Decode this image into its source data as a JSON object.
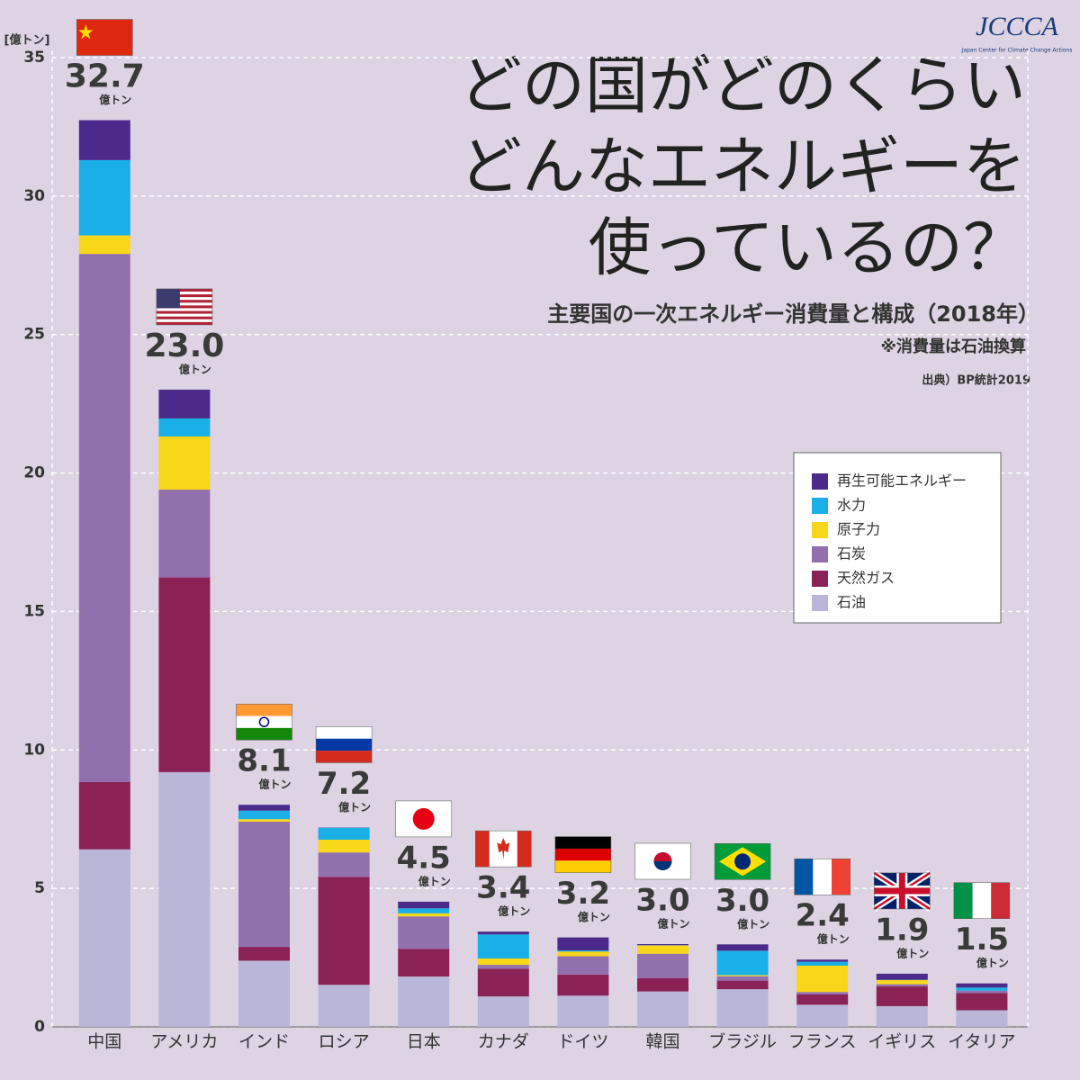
{
  "chart_data": {
    "type": "stacked-bar",
    "title_lines": [
      "どの国がどのくらい",
      "どんなエネルギーを",
      "使っているの？"
    ],
    "subtitle": "主要国の一次エネルギー消費量と構成（2018年）",
    "note": "※消費量は石油換算",
    "source": "出典）BP統計2019",
    "logo": "JCCCA",
    "logo_caption": "Japan Center for Climate Change Actions",
    "y_label": "[億トン]",
    "categories": [
      "中国",
      "アメリカ",
      "インド",
      "ロシア",
      "日本",
      "カナダ",
      "ドイツ",
      "韓国",
      "ブラジル",
      "フランス",
      "イギリス",
      "イタリア"
    ],
    "series": [
      {
        "name": "石油",
        "color": "#b9b6d7",
        "values": [
          6.41,
          9.2,
          2.39,
          1.52,
          1.82,
          1.1,
          1.13,
          1.28,
          1.36,
          0.8,
          0.75,
          0.6
        ]
      },
      {
        "name": "天然ガス",
        "color": "#8a2256",
        "values": [
          2.43,
          7.03,
          0.5,
          3.9,
          1.0,
          1.0,
          0.76,
          0.48,
          0.31,
          0.37,
          0.71,
          0.62
        ]
      },
      {
        "name": "石炭",
        "color": "#9270ae",
        "values": [
          19.07,
          3.17,
          4.52,
          0.88,
          1.17,
          0.14,
          0.66,
          0.88,
          0.16,
          0.09,
          0.08,
          0.09
        ]
      },
      {
        "name": "原子力",
        "color": "#f8d61a",
        "values": [
          0.67,
          1.92,
          0.09,
          0.46,
          0.11,
          0.23,
          0.17,
          0.3,
          0.04,
          0.95,
          0.15,
          0
        ]
      },
      {
        "name": "水力",
        "color": "#1aafe6",
        "values": [
          2.72,
          0.65,
          0.31,
          0.43,
          0.18,
          0.87,
          0.04,
          0.01,
          0.88,
          0.14,
          0.01,
          0.11
        ]
      },
      {
        "name": "再生可能エネルギー",
        "color": "#4c2a8b",
        "values": [
          1.44,
          1.04,
          0.21,
          0.01,
          0.24,
          0.1,
          0.47,
          0.04,
          0.23,
          0.08,
          0.22,
          0.15
        ]
      }
    ],
    "totals": [
      32.7,
      23,
      8.1,
      7.2,
      4.5,
      3.4,
      3.2,
      3,
      3,
      2.4,
      1.9,
      1.5
    ],
    "value_labels": [
      "32.7",
      "23.0",
      "8.1",
      "7.2",
      "4.5",
      "3.4",
      "3.2",
      "3.0",
      "3.0",
      "2.4",
      "1.9",
      "1.5"
    ],
    "value_unit": "億トン",
    "ylim": [
      0,
      35
    ],
    "yticks": [
      0,
      5,
      10,
      15,
      20,
      25,
      30,
      35
    ],
    "grid": true
  }
}
